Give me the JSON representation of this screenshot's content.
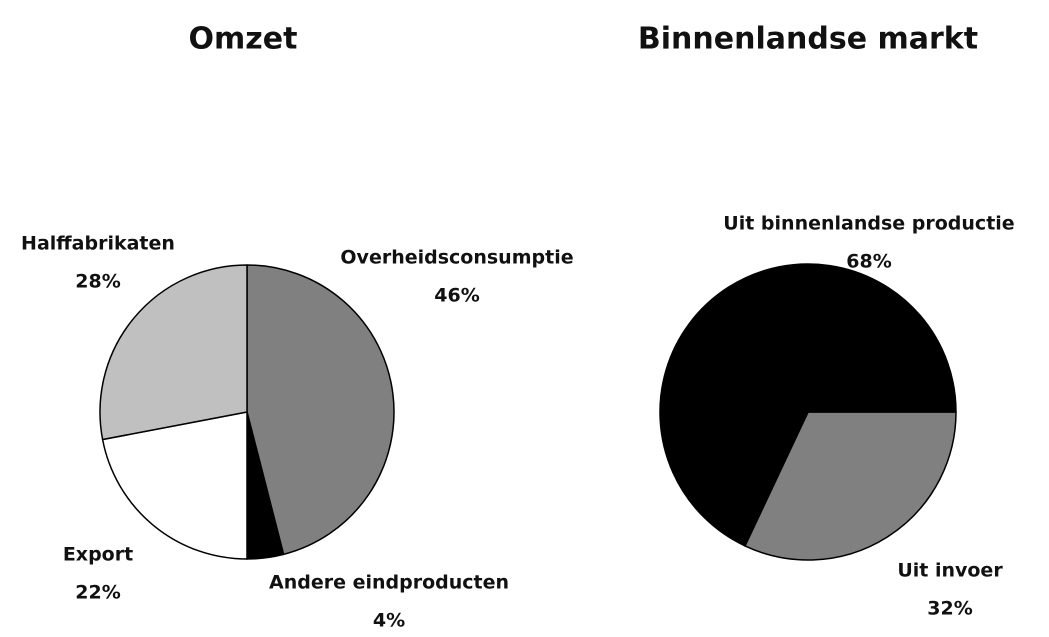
{
  "chart_data": [
    {
      "type": "pie",
      "title": "Omzet",
      "categories": [
        "Overheidsconsumptie",
        "Andere eindproducten",
        "Export",
        "Halffabrikaten"
      ],
      "values": [
        46,
        4,
        22,
        28
      ],
      "value_labels": [
        "46%",
        "4%",
        "22%",
        "28%"
      ],
      "colors": [
        "#808080",
        "#000000",
        "#ffffff",
        "#c0c0c0"
      ]
    },
    {
      "type": "pie",
      "title": "Binnenlandse markt",
      "categories": [
        "Uit invoer",
        "Uit binnenlandse productie"
      ],
      "values": [
        32,
        68
      ],
      "value_labels": [
        "32%",
        "68%"
      ],
      "colors": [
        "#808080",
        "#000000"
      ]
    }
  ]
}
